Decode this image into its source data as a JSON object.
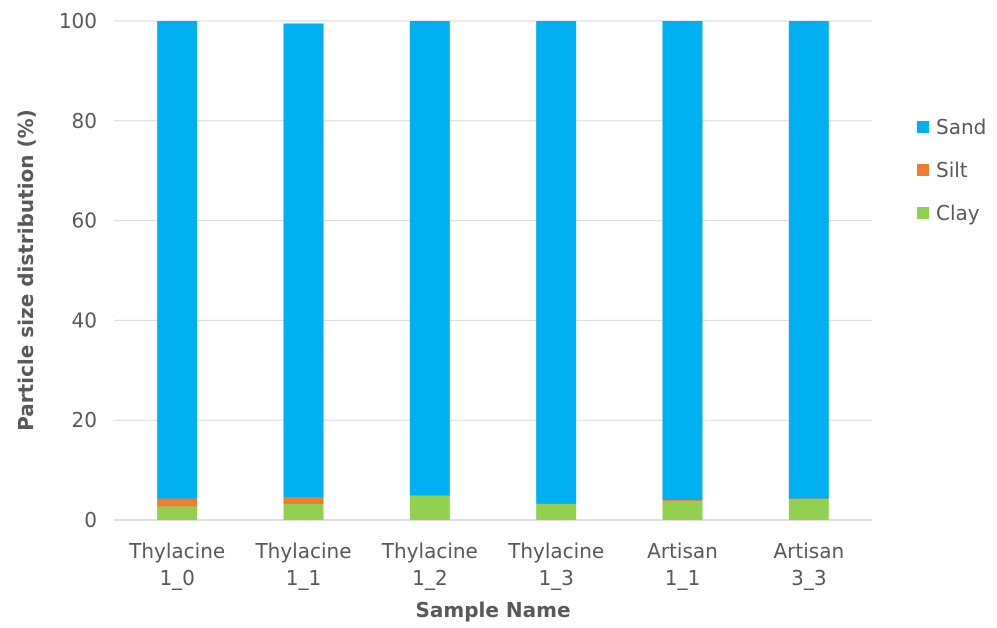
{
  "chart_data": {
    "type": "bar",
    "stacked": true,
    "categories": [
      [
        "Thylacine",
        "1_0"
      ],
      [
        "Thylacine",
        "1_1"
      ],
      [
        "Thylacine",
        "1_2"
      ],
      [
        "Thylacine",
        "1_3"
      ],
      [
        "Artisan",
        "1_1"
      ],
      [
        "Artisan",
        "3_3"
      ]
    ],
    "series": [
      {
        "name": "Clay",
        "color": "#92D050",
        "values": [
          2.7,
          3.2,
          4.8,
          3.2,
          3.8,
          4.2
        ]
      },
      {
        "name": "Silt",
        "color": "#ED7D31",
        "values": [
          1.6,
          1.4,
          0.2,
          0.1,
          0.2,
          0.1
        ]
      },
      {
        "name": "Sand",
        "color": "#00B0F0",
        "values": [
          95.7,
          94.9,
          95.0,
          96.7,
          96.0,
          95.7
        ]
      }
    ],
    "legend_order": [
      "Sand",
      "Silt",
      "Clay"
    ],
    "title": "",
    "xlabel": "Sample Name",
    "ylabel": "Particle size distribution (%)",
    "ylim": [
      0,
      100
    ],
    "yticks": [
      0,
      20,
      40,
      60,
      80,
      100
    ],
    "grid": true,
    "legend_position": "right"
  }
}
